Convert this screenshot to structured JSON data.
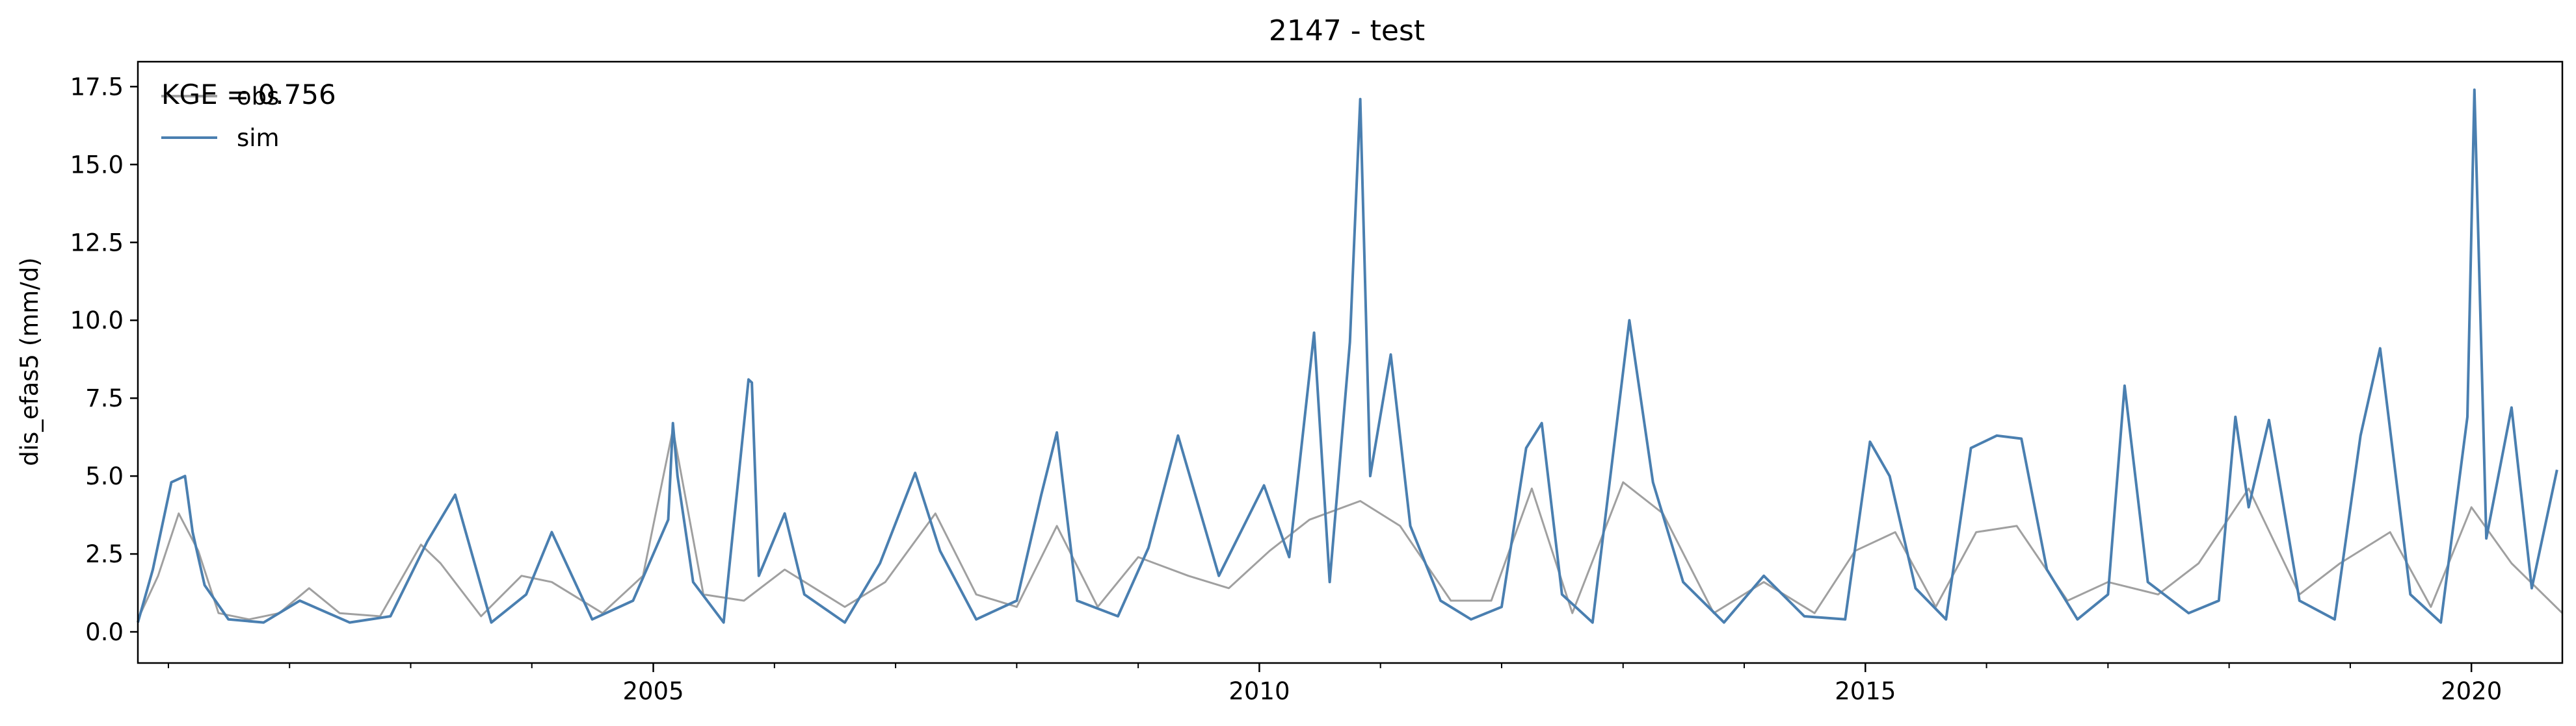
{
  "chart_data": {
    "type": "line",
    "title": "2147 - test",
    "xlabel": "",
    "ylabel": "dis_efas5 (mm/d)",
    "xlim": [
      "2000-10-01",
      "2020-10-01"
    ],
    "ylim": [
      -1.0,
      18.3
    ],
    "yticks": [
      0.0,
      2.5,
      5.0,
      7.5,
      10.0,
      12.5,
      15.0,
      17.5
    ],
    "ytick_labels": [
      "0.0",
      "2.5",
      "5.0",
      "7.5",
      "10.0",
      "12.5",
      "15.0",
      "17.5"
    ],
    "xticks": [
      "2005-01-01",
      "2010-01-01",
      "2015-01-01",
      "2020-01-01"
    ],
    "xtick_labels": [
      "2005",
      "2010",
      "2015",
      "2020"
    ],
    "minor_xticks": [
      "2001-01-01",
      "2002-01-01",
      "2003-01-01",
      "2004-01-01",
      "2006-01-01",
      "2007-01-01",
      "2008-01-01",
      "2009-01-01",
      "2011-01-01",
      "2012-01-01",
      "2013-01-01",
      "2014-01-01",
      "2016-01-01",
      "2017-01-01",
      "2018-01-01",
      "2019-01-01"
    ],
    "grid": false,
    "legend_position": "top-left",
    "annotation": "KGE = 0.756",
    "colors": {
      "obs": "#a0a0a0",
      "sim": "#4a7fb0"
    },
    "series": [
      {
        "name": "obs",
        "x": [
          "2000-10-01",
          "2000-12-01",
          "2001-02-01",
          "2001-04-01",
          "2001-06-01",
          "2001-09-01",
          "2001-12-01",
          "2002-03-01",
          "2002-06-01",
          "2002-10-01",
          "2003-02-01",
          "2003-04-01",
          "2003-08-01",
          "2003-12-01",
          "2004-03-01",
          "2004-08-01",
          "2004-12-01",
          "2005-03-01",
          "2005-06-01",
          "2005-10-01",
          "2006-02-01",
          "2006-08-01",
          "2006-12-01",
          "2007-05-01",
          "2007-09-01",
          "2008-01-01",
          "2008-05-01",
          "2008-09-01",
          "2009-01-01",
          "2009-06-01",
          "2009-10-01",
          "2010-02-01",
          "2010-06-01",
          "2010-11-01",
          "2011-03-01",
          "2011-08-01",
          "2011-12-01",
          "2012-04-01",
          "2012-08-01",
          "2013-01-01",
          "2013-05-01",
          "2013-10-01",
          "2014-03-01",
          "2014-08-01",
          "2014-12-01",
          "2015-04-01",
          "2015-08-01",
          "2015-12-01",
          "2016-04-01",
          "2016-09-01",
          "2017-01-01",
          "2017-06-01",
          "2017-10-01",
          "2018-03-01",
          "2018-08-01",
          "2018-12-01",
          "2019-05-01",
          "2019-09-01",
          "2020-01-01",
          "2020-05-01",
          "2020-10-01"
        ],
        "y": [
          0.4,
          1.8,
          3.8,
          2.6,
          0.6,
          0.4,
          0.6,
          1.4,
          0.6,
          0.5,
          2.8,
          2.2,
          0.5,
          1.8,
          1.6,
          0.6,
          1.8,
          6.5,
          1.2,
          1.0,
          2.0,
          0.8,
          1.6,
          3.8,
          1.2,
          0.8,
          3.4,
          0.8,
          2.4,
          1.8,
          1.4,
          2.6,
          3.6,
          4.2,
          3.4,
          1.0,
          1.0,
          4.6,
          0.6,
          4.8,
          3.8,
          0.6,
          1.6,
          0.6,
          2.6,
          3.2,
          0.8,
          3.2,
          3.4,
          1.0,
          1.6,
          1.2,
          2.2,
          4.6,
          1.2,
          2.2,
          3.2,
          0.8,
          4.0,
          2.2,
          0.6
        ]
      },
      {
        "name": "sim",
        "x": [
          "2000-10-01",
          "2000-11-15",
          "2001-01-10",
          "2001-02-20",
          "2001-03-15",
          "2001-04-20",
          "2001-07-01",
          "2001-10-15",
          "2002-02-01",
          "2002-07-01",
          "2002-11-01",
          "2003-02-20",
          "2003-05-15",
          "2003-09-01",
          "2003-12-15",
          "2004-03-01",
          "2004-07-01",
          "2004-11-01",
          "2005-02-15",
          "2005-03-01",
          "2005-03-15",
          "2005-05-01",
          "2005-08-01",
          "2005-10-15",
          "2005-10-25",
          "2005-11-15",
          "2006-02-01",
          "2006-04-01",
          "2006-08-01",
          "2006-11-15",
          "2007-03-01",
          "2007-05-15",
          "2007-09-01",
          "2008-01-01",
          "2008-03-15",
          "2008-05-01",
          "2008-07-01",
          "2008-11-01",
          "2009-02-01",
          "2009-05-01",
          "2009-09-01",
          "2010-01-15",
          "2010-04-01",
          "2010-06-15",
          "2010-08-01",
          "2010-10-01",
          "2010-11-01",
          "2010-12-01",
          "2011-02-01",
          "2011-04-01",
          "2011-07-01",
          "2011-10-01",
          "2012-01-01",
          "2012-03-15",
          "2012-05-01",
          "2012-07-01",
          "2012-10-01",
          "2013-01-20",
          "2013-04-01",
          "2013-07-01",
          "2013-11-01",
          "2014-03-01",
          "2014-07-01",
          "2014-11-01",
          "2015-01-15",
          "2015-03-15",
          "2015-06-01",
          "2015-09-01",
          "2015-11-15",
          "2016-02-01",
          "2016-04-15",
          "2016-07-01",
          "2016-10-01",
          "2017-01-01",
          "2017-02-20",
          "2017-05-01",
          "2017-09-01",
          "2017-12-01",
          "2018-01-20",
          "2018-03-01",
          "2018-05-01",
          "2018-08-01",
          "2018-11-15",
          "2019-02-01",
          "2019-04-01",
          "2019-07-01",
          "2019-10-01",
          "2019-12-20",
          "2020-01-10",
          "2020-02-15",
          "2020-05-01",
          "2020-07-01",
          "2020-09-15"
        ],
        "y": [
          0.3,
          2.0,
          4.8,
          5.0,
          3.2,
          1.5,
          0.4,
          0.3,
          1.0,
          0.3,
          0.5,
          2.9,
          4.4,
          0.3,
          1.2,
          3.2,
          0.4,
          1.0,
          3.6,
          6.7,
          5.0,
          1.6,
          0.3,
          8.1,
          8.0,
          1.8,
          3.8,
          1.2,
          0.3,
          2.2,
          5.1,
          2.6,
          0.4,
          1.0,
          4.4,
          6.4,
          1.0,
          0.5,
          2.7,
          6.3,
          1.8,
          4.7,
          2.4,
          9.6,
          1.6,
          9.3,
          17.1,
          5.0,
          8.9,
          3.4,
          1.0,
          0.4,
          0.8,
          5.9,
          6.7,
          1.2,
          0.3,
          10.0,
          4.8,
          1.6,
          0.3,
          1.8,
          0.5,
          0.4,
          6.1,
          5.0,
          1.4,
          0.4,
          5.9,
          6.3,
          6.2,
          2.0,
          0.4,
          1.2,
          7.9,
          1.6,
          0.6,
          1.0,
          6.9,
          4.0,
          6.8,
          1.0,
          0.4,
          6.3,
          9.1,
          1.2,
          0.3,
          6.9,
          17.4,
          3.0,
          7.2,
          1.4,
          5.2
        ]
      }
    ]
  }
}
